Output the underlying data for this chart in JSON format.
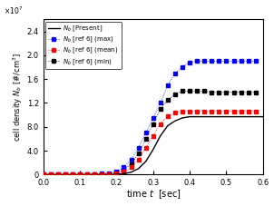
{
  "xlabel": "time $t$  [sec]",
  "ylabel": "cell density $N_b$ [#/cm$^3$]",
  "xlim": [
    0.0,
    0.6
  ],
  "ylim": [
    0,
    26000000.0
  ],
  "yticks": [
    0,
    4000000.0,
    8000000.0,
    12000000.0,
    16000000.0,
    20000000.0,
    24000000.0
  ],
  "xticks": [
    0.0,
    0.1,
    0.2,
    0.3,
    0.4,
    0.5,
    0.6
  ],
  "sim_color": "#000000",
  "max_color": "#0000ff",
  "mean_color": "#ff0000",
  "min_color": "#000000",
  "background_color": "#ffffff",
  "legend_labels": [
    "$N_b$ [Present]",
    "$N_b$ [ref 6] (max)",
    "$N_b$ [ref 6] (mean)",
    "$N_b$ [ref 6] (min)"
  ],
  "sim_x": [
    0.0,
    0.02,
    0.04,
    0.06,
    0.08,
    0.1,
    0.12,
    0.14,
    0.16,
    0.18,
    0.2,
    0.22,
    0.24,
    0.26,
    0.28,
    0.3,
    0.32,
    0.34,
    0.36,
    0.38,
    0.4,
    0.42,
    0.44,
    0.46,
    0.48,
    0.5,
    0.52,
    0.54,
    0.56,
    0.58,
    0.6
  ],
  "sim_y": [
    0,
    0,
    0,
    0,
    0,
    0,
    0,
    0,
    0,
    0,
    50000.0,
    150000.0,
    400000.0,
    1000000.0,
    2200000.0,
    4200000.0,
    6500000.0,
    8200000.0,
    9000000.0,
    9500000.0,
    9700000.0,
    9700000.0,
    9700000.0,
    9700000.0,
    9700000.0,
    9700000.0,
    9700000.0,
    9700000.0,
    9700000.0,
    9700000.0,
    9700000.0
  ],
  "max_x": [
    0.0,
    0.02,
    0.04,
    0.06,
    0.08,
    0.1,
    0.12,
    0.14,
    0.16,
    0.18,
    0.2,
    0.22,
    0.24,
    0.26,
    0.28,
    0.3,
    0.32,
    0.34,
    0.36,
    0.38,
    0.4,
    0.42,
    0.44,
    0.46,
    0.48,
    0.5,
    0.52,
    0.54,
    0.56,
    0.58
  ],
  "max_y": [
    0,
    0,
    0,
    0,
    0,
    0,
    0,
    100000.0,
    150000.0,
    200000.0,
    500000.0,
    1200000.0,
    2500000.0,
    4500000.0,
    7000000.0,
    9500000.0,
    12000000.0,
    15000000.0,
    17000000.0,
    18000000.0,
    18800000.0,
    19000000.0,
    19000000.0,
    19000000.0,
    19000000.0,
    19000000.0,
    19000000.0,
    19000000.0,
    19000000.0,
    19000000.0
  ],
  "mean_x": [
    0.0,
    0.02,
    0.04,
    0.06,
    0.08,
    0.1,
    0.12,
    0.14,
    0.16,
    0.18,
    0.2,
    0.22,
    0.24,
    0.26,
    0.28,
    0.3,
    0.32,
    0.34,
    0.36,
    0.38,
    0.4,
    0.42,
    0.44,
    0.46,
    0.48,
    0.5,
    0.52,
    0.54,
    0.56,
    0.58
  ],
  "mean_y": [
    0,
    0,
    0,
    0,
    0,
    0,
    0,
    0,
    50000.0,
    100000.0,
    200000.0,
    500000.0,
    1200000.0,
    2500000.0,
    4500000.0,
    6500000.0,
    8500000.0,
    9800000.0,
    10400000.0,
    10600000.0,
    10600000.0,
    10600000.0,
    10600000.0,
    10600000.0,
    10600000.0,
    10600000.0,
    10600000.0,
    10600000.0,
    10600000.0,
    10600000.0
  ],
  "min_x": [
    0.0,
    0.02,
    0.04,
    0.06,
    0.08,
    0.1,
    0.12,
    0.14,
    0.16,
    0.18,
    0.2,
    0.22,
    0.24,
    0.26,
    0.28,
    0.3,
    0.32,
    0.34,
    0.36,
    0.38,
    0.4,
    0.42,
    0.44,
    0.46,
    0.48,
    0.5,
    0.52,
    0.54,
    0.56,
    0.58
  ],
  "min_y": [
    0,
    0,
    0,
    0,
    0,
    0,
    0,
    0,
    50000.0,
    100000.0,
    300000.0,
    800000.0,
    1800000.0,
    3500000.0,
    6000000.0,
    8500000.0,
    11000000.0,
    12500000.0,
    13500000.0,
    14000000.0,
    14000000.0,
    14000000.0,
    14000000.0,
    13800000.0,
    13800000.0,
    13800000.0,
    13800000.0,
    13800000.0,
    13800000.0,
    13800000.0
  ]
}
